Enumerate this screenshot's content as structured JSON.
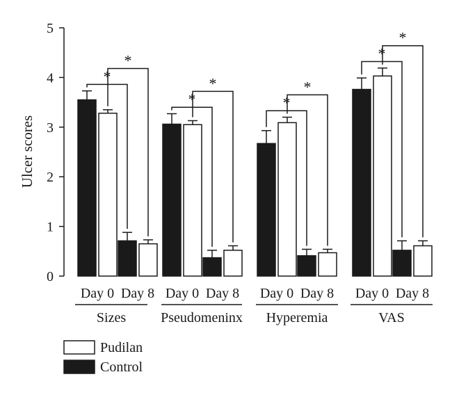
{
  "chart_data": {
    "type": "bar",
    "ylabel": "Ulcer scores",
    "ylim": [
      0,
      5
    ],
    "yticks": [
      "0",
      "1",
      "2",
      "3",
      "4",
      "5"
    ],
    "groups": [
      {
        "name": "Sizes",
        "bars": [
          {
            "label": "Day 0",
            "series": "Control",
            "value": 3.55,
            "error": 0.18
          },
          {
            "label": "Day 0",
            "series": "Pudilan",
            "value": 3.28,
            "error": 0.07
          },
          {
            "label": "Day 8",
            "series": "Control",
            "value": 0.71,
            "error": 0.17
          },
          {
            "label": "Day 8",
            "series": "Pudilan",
            "value": 0.65,
            "error": 0.08
          }
        ]
      },
      {
        "name": "Pseudomeninx",
        "bars": [
          {
            "label": "Day 0",
            "series": "Control",
            "value": 3.06,
            "error": 0.21
          },
          {
            "label": "Day 0",
            "series": "Pudilan",
            "value": 3.05,
            "error": 0.08
          },
          {
            "label": "Day 8",
            "series": "Control",
            "value": 0.37,
            "error": 0.15
          },
          {
            "label": "Day 8",
            "series": "Pudilan",
            "value": 0.52,
            "error": 0.09
          }
        ]
      },
      {
        "name": "Hyperemia",
        "bars": [
          {
            "label": "Day 0",
            "series": "Control",
            "value": 2.67,
            "error": 0.26
          },
          {
            "label": "Day 0",
            "series": "Pudilan",
            "value": 3.09,
            "error": 0.11
          },
          {
            "label": "Day 8",
            "series": "Control",
            "value": 0.41,
            "error": 0.13
          },
          {
            "label": "Day 8",
            "series": "Pudilan",
            "value": 0.47,
            "error": 0.07
          }
        ]
      },
      {
        "name": "VAS",
        "bars": [
          {
            "label": "Day 0",
            "series": "Control",
            "value": 3.76,
            "error": 0.23
          },
          {
            "label": "Day 0",
            "series": "Pudilan",
            "value": 4.03,
            "error": 0.16
          },
          {
            "label": "Day 8",
            "series": "Control",
            "value": 0.52,
            "error": 0.19
          },
          {
            "label": "Day 8",
            "series": "Pudilan",
            "value": 0.61,
            "error": 0.1
          }
        ]
      }
    ],
    "significance_marker": "*",
    "legend": {
      "placement": "bottom-left",
      "entries": [
        {
          "name": "Pudilan",
          "fill": "#ffffff"
        },
        {
          "name": "Control",
          "fill": "#1a1a1a"
        }
      ]
    },
    "colors": {
      "control": "#1a1a1a",
      "pudilan": "#ffffff",
      "line": "#1a1a1a"
    },
    "grid": false
  }
}
